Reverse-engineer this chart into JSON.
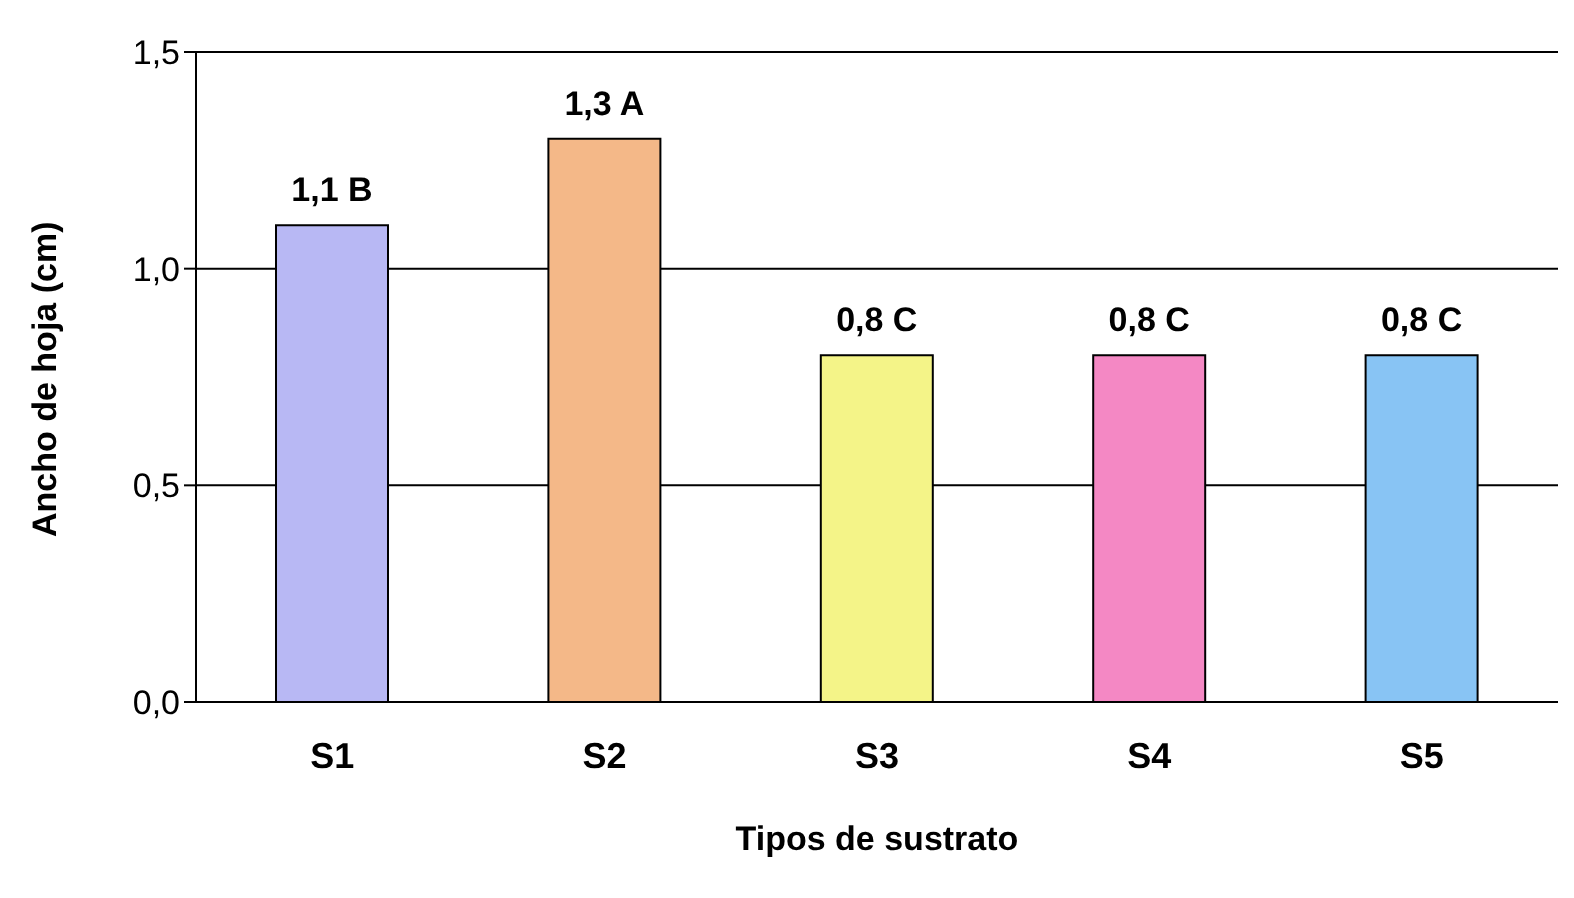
{
  "chart_data": {
    "type": "bar",
    "xlabel": "Tipos de sustrato",
    "ylabel": "Ancho de hoja (cm)",
    "categories": [
      "S1",
      "S2",
      "S3",
      "S4",
      "S5"
    ],
    "values": [
      1.1,
      1.3,
      0.8,
      0.8,
      0.8
    ],
    "colors": [
      "#b8b8f4",
      "#f4b888",
      "#f4f488",
      "#f488c4",
      "#88c4f4"
    ],
    "value_labels": [
      "1,1 B",
      "1,3 A",
      "0,8 C",
      "0,8 C",
      "0,8 C"
    ],
    "ylim": [
      0,
      1.5
    ],
    "yticks": [
      {
        "value": 0,
        "label": "0,0"
      },
      {
        "value": 0.5,
        "label": "0,5"
      },
      {
        "value": 1,
        "label": "1,0"
      },
      {
        "value": 1.5,
        "label": "1,5"
      }
    ],
    "grid": "y"
  }
}
